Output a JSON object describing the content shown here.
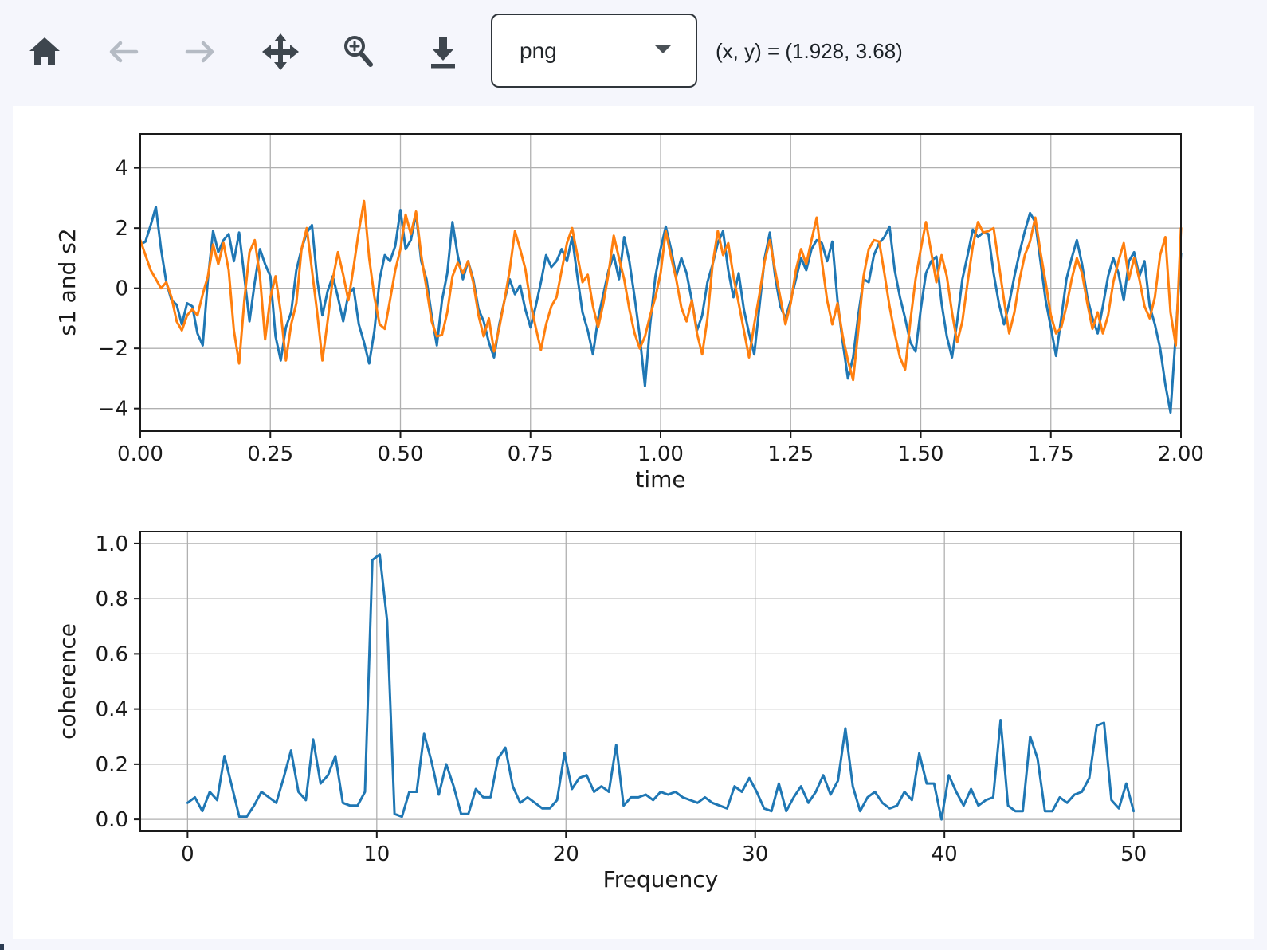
{
  "toolbar": {
    "buttons": [
      {
        "label": "Home",
        "icon": "home-icon",
        "enabled": true
      },
      {
        "label": "Back",
        "icon": "arrow-left-icon",
        "enabled": false
      },
      {
        "label": "Forward",
        "icon": "arrow-right-icon",
        "enabled": false
      },
      {
        "label": "Pan",
        "icon": "move-icon",
        "enabled": true
      },
      {
        "label": "Zoom",
        "icon": "zoom-in-icon",
        "enabled": true
      },
      {
        "label": "Download",
        "icon": "download-icon",
        "enabled": true
      }
    ],
    "format_select": {
      "value": "png"
    },
    "cursor_readout": "(x, y) = (1.928, 3.68)",
    "colors": {
      "icon_enabled": "#3e464e",
      "icon_disabled": "#b5bbc4",
      "border": "#2f353b"
    }
  },
  "chart_data": [
    {
      "type": "line",
      "title": "",
      "xlabel": "time",
      "ylabel": "s1 and s2",
      "xlim": [
        0,
        2
      ],
      "ylim": [
        -4.75,
        5.13
      ],
      "grid": true,
      "legend": null,
      "xticks": [
        {
          "v": 0,
          "label": "0.00"
        },
        {
          "v": 0.25,
          "label": "0.25"
        },
        {
          "v": 0.5,
          "label": "0.50"
        },
        {
          "v": 0.75,
          "label": "0.75"
        },
        {
          "v": 1.0,
          "label": "1.00"
        },
        {
          "v": 1.25,
          "label": "1.25"
        },
        {
          "v": 1.5,
          "label": "1.50"
        },
        {
          "v": 1.75,
          "label": "1.75"
        },
        {
          "v": 2.0,
          "label": "2.00"
        }
      ],
      "yticks": [
        {
          "v": -4,
          "label": "−4"
        },
        {
          "v": -2,
          "label": "−2"
        },
        {
          "v": 0,
          "label": "0"
        },
        {
          "v": 2,
          "label": "2"
        },
        {
          "v": 4,
          "label": "4"
        }
      ],
      "series": [
        {
          "name": "s1",
          "color": "#1f77b4",
          "x_start": 0,
          "x_step": 0.01,
          "values": [
            1.45,
            1.55,
            2.1,
            2.7,
            1.3,
            0.2,
            -0.4,
            -0.55,
            -1.2,
            -0.5,
            -0.6,
            -1.5,
            -1.9,
            0.3,
            1.9,
            1.2,
            1.6,
            1.8,
            0.9,
            1.85,
            0.4,
            -1.1,
            0.2,
            1.3,
            0.8,
            0.4,
            -1.6,
            -2.4,
            -1.3,
            -0.8,
            0.6,
            1.3,
            1.85,
            2.1,
            0.3,
            -0.9,
            -0.1,
            0.4,
            -0.3,
            -1.1,
            -0.2,
            0.0,
            -1.2,
            -1.8,
            -2.5,
            -1.4,
            0.3,
            1.1,
            0.9,
            1.4,
            2.6,
            1.3,
            1.6,
            2.5,
            0.9,
            0.3,
            -0.9,
            -1.9,
            -0.4,
            0.5,
            2.2,
            1.1,
            0.3,
            0.9,
            0.3,
            -0.7,
            -1.1,
            -1.8,
            -2.3,
            -1.2,
            -0.4,
            0.3,
            -0.2,
            0.1,
            -0.7,
            -1.3,
            -0.6,
            0.2,
            1.1,
            0.7,
            0.9,
            1.3,
            0.9,
            1.7,
            0.4,
            -0.8,
            -1.4,
            -2.2,
            -1.0,
            -0.2,
            0.6,
            1.1,
            0.3,
            1.7,
            0.9,
            -0.3,
            -1.6,
            -3.25,
            -1.2,
            0.4,
            1.3,
            2.05,
            1.3,
            0.4,
            1.0,
            0.5,
            -0.4,
            -1.4,
            -0.9,
            0.2,
            0.8,
            1.5,
            1.9,
            0.6,
            -0.3,
            0.5,
            -0.7,
            -1.5,
            -2.2,
            -0.6,
            1.0,
            1.85,
            0.4,
            -0.6,
            -1.0,
            -0.4,
            0.3,
            1.0,
            0.6,
            1.3,
            1.6,
            1.5,
            0.9,
            1.55,
            -0.4,
            -1.8,
            -3.0,
            -2.3,
            -0.9,
            0.3,
            0.2,
            1.1,
            1.5,
            1.7,
            2.05,
            0.6,
            -0.3,
            -1.0,
            -1.8,
            -2.1,
            -0.7,
            0.5,
            0.9,
            1.05,
            -0.5,
            -1.6,
            -2.3,
            -1.1,
            0.3,
            1.1,
            1.95,
            1.7,
            1.85,
            1.8,
            0.5,
            -0.5,
            -1.2,
            -0.5,
            0.4,
            1.2,
            1.9,
            2.5,
            2.2,
            0.9,
            -0.4,
            -1.3,
            -2.25,
            -1.0,
            0.3,
            1.0,
            1.6,
            0.8,
            -0.3,
            -1.0,
            -1.5,
            -0.6,
            0.4,
            1.0,
            0.5,
            -0.4,
            0.9,
            1.2,
            0.4,
            0.9,
            -0.6,
            -1.2,
            -2.0,
            -3.2,
            -4.13,
            -1.5,
            1.15
          ]
        },
        {
          "name": "s2",
          "color": "#ff7f0e",
          "x_start": 0,
          "x_step": 0.01,
          "values": [
            1.6,
            1.1,
            0.6,
            0.3,
            0.0,
            0.2,
            -0.3,
            -1.1,
            -1.4,
            -0.9,
            -0.7,
            -0.9,
            -0.2,
            0.4,
            1.45,
            0.8,
            1.5,
            0.6,
            -1.4,
            -2.5,
            -0.4,
            1.2,
            1.6,
            0.4,
            -1.7,
            -0.3,
            0.4,
            -0.8,
            -2.4,
            -1.2,
            -0.5,
            1.3,
            2.0,
            0.6,
            -0.8,
            -2.4,
            -1.1,
            0.3,
            1.2,
            0.45,
            -0.4,
            0.7,
            1.9,
            2.9,
            1.0,
            -0.3,
            -1.2,
            -1.35,
            -0.4,
            0.6,
            1.3,
            2.45,
            1.8,
            2.55,
            1.1,
            0.0,
            -1.1,
            -1.6,
            -1.55,
            -0.8,
            0.4,
            0.85,
            0.5,
            0.9,
            0.2,
            -0.9,
            -1.6,
            -1.0,
            -2.1,
            -1.3,
            -0.4,
            0.6,
            1.9,
            1.3,
            0.65,
            -0.5,
            -1.3,
            -2.05,
            -1.2,
            -0.6,
            -0.3,
            0.6,
            1.5,
            2.0,
            1.1,
            0.2,
            0.45,
            -0.6,
            -1.3,
            -0.5,
            0.5,
            1.75,
            1.0,
            0.3,
            -0.7,
            -1.5,
            -2.0,
            -1.6,
            -0.9,
            -0.3,
            0.5,
            1.9,
            1.05,
            0.3,
            -0.65,
            -1.1,
            -0.4,
            -1.5,
            -2.2,
            -1.0,
            0.8,
            1.9,
            1.1,
            1.5,
            0.4,
            -0.5,
            -1.4,
            -2.3,
            -1.2,
            -0.2,
            0.9,
            1.6,
            0.6,
            -0.3,
            -1.2,
            -0.5,
            0.6,
            1.3,
            0.8,
            1.6,
            2.35,
            0.9,
            -0.4,
            -1.2,
            -0.5,
            -1.6,
            -2.4,
            -3.05,
            -1.4,
            0.4,
            1.3,
            1.6,
            1.55,
            0.5,
            -0.6,
            -1.5,
            -2.3,
            -2.7,
            -1.1,
            0.3,
            1.3,
            2.2,
            1.2,
            0.2,
            1.1,
            0.4,
            -0.8,
            -1.8,
            -1.1,
            0.2,
            1.4,
            2.2,
            1.85,
            1.9,
            2.0,
            0.8,
            -0.4,
            -1.5,
            -0.8,
            0.3,
            1.1,
            1.55,
            2.35,
            1.2,
            0.2,
            -0.9,
            -1.5,
            -1.3,
            -0.6,
            0.3,
            1.0,
            0.5,
            -0.5,
            -1.35,
            -0.8,
            -1.5,
            -0.9,
            0.2,
            0.9,
            1.5,
            0.3,
            1.0,
            0.3,
            -0.6,
            -1.0,
            -0.3,
            1.1,
            1.7,
            -0.8,
            -1.9,
            2.0
          ]
        }
      ]
    },
    {
      "type": "line",
      "title": "",
      "xlabel": "Frequency",
      "ylabel": "coherence",
      "xlim": [
        -2.5,
        52.5
      ],
      "ylim": [
        -0.043,
        1.043
      ],
      "grid": true,
      "legend": null,
      "xticks": [
        {
          "v": 0,
          "label": "0"
        },
        {
          "v": 10,
          "label": "10"
        },
        {
          "v": 20,
          "label": "20"
        },
        {
          "v": 30,
          "label": "30"
        },
        {
          "v": 40,
          "label": "40"
        },
        {
          "v": 50,
          "label": "50"
        }
      ],
      "yticks": [
        {
          "v": 0,
          "label": "0.0"
        },
        {
          "v": 0.2,
          "label": "0.2"
        },
        {
          "v": 0.4,
          "label": "0.4"
        },
        {
          "v": 0.6,
          "label": "0.6"
        },
        {
          "v": 0.8,
          "label": "0.8"
        },
        {
          "v": 1.0,
          "label": "1.0"
        }
      ],
      "series": [
        {
          "name": "coherence",
          "color": "#1f77b4",
          "x_start": 0,
          "x_step": 0.390625,
          "values": [
            0.06,
            0.08,
            0.03,
            0.1,
            0.07,
            0.23,
            0.12,
            0.01,
            0.01,
            0.05,
            0.1,
            0.08,
            0.06,
            0.15,
            0.25,
            0.1,
            0.07,
            0.29,
            0.13,
            0.16,
            0.23,
            0.06,
            0.05,
            0.05,
            0.1,
            0.94,
            0.96,
            0.72,
            0.02,
            0.01,
            0.1,
            0.1,
            0.31,
            0.21,
            0.09,
            0.2,
            0.12,
            0.02,
            0.02,
            0.11,
            0.08,
            0.08,
            0.22,
            0.26,
            0.12,
            0.06,
            0.08,
            0.06,
            0.04,
            0.04,
            0.07,
            0.24,
            0.11,
            0.15,
            0.16,
            0.1,
            0.12,
            0.1,
            0.27,
            0.05,
            0.08,
            0.08,
            0.09,
            0.07,
            0.1,
            0.09,
            0.1,
            0.08,
            0.07,
            0.06,
            0.08,
            0.06,
            0.05,
            0.04,
            0.12,
            0.1,
            0.15,
            0.1,
            0.04,
            0.03,
            0.13,
            0.03,
            0.08,
            0.12,
            0.06,
            0.1,
            0.16,
            0.09,
            0.14,
            0.33,
            0.12,
            0.03,
            0.08,
            0.1,
            0.06,
            0.04,
            0.05,
            0.1,
            0.07,
            0.24,
            0.13,
            0.13,
            0.0,
            0.16,
            0.1,
            0.05,
            0.11,
            0.05,
            0.07,
            0.08,
            0.36,
            0.05,
            0.03,
            0.03,
            0.3,
            0.22,
            0.03,
            0.03,
            0.08,
            0.06,
            0.09,
            0.1,
            0.15,
            0.34,
            0.35,
            0.07,
            0.04,
            0.13,
            0.03
          ]
        }
      ]
    }
  ]
}
